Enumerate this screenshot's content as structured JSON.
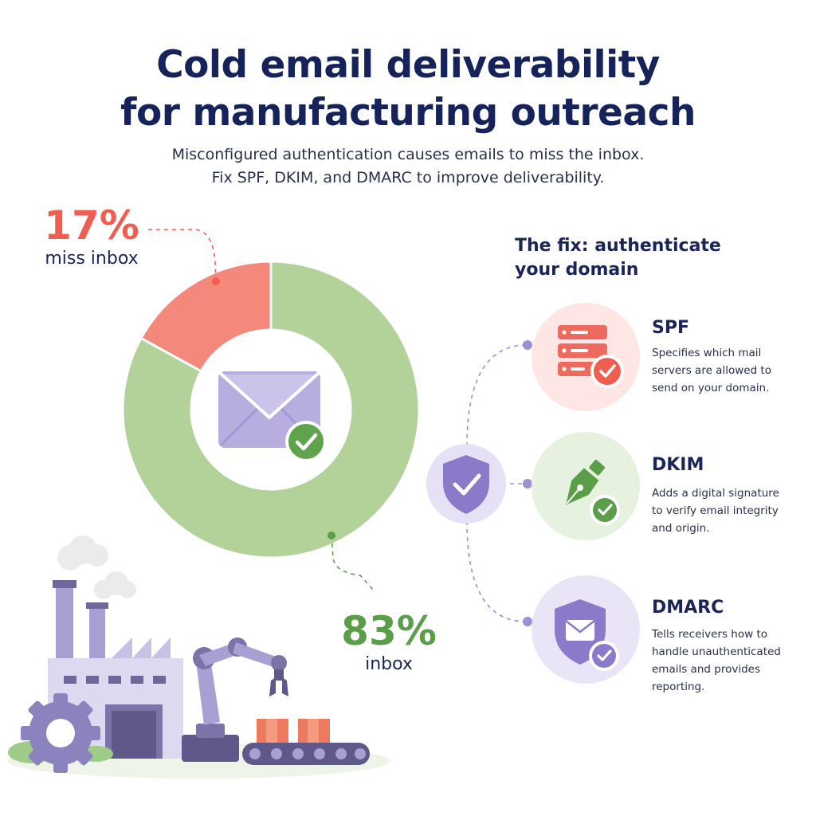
{
  "title_line1": "Cold email deliverability",
  "title_line2": "for manufacturing outreach",
  "subtitle_line1": "Misconfigured authentication causes emails to miss the inbox.",
  "subtitle_line2": "Fix SPF, DKIM, and DMARC to improve deliverability.",
  "chart_data": {
    "type": "pie",
    "labels": [
      "miss inbox",
      "inbox"
    ],
    "values": [
      17,
      83
    ],
    "value_labels": [
      "17%",
      "83%"
    ],
    "colors": [
      "#f4897b",
      "#b3d29a"
    ]
  },
  "fix": {
    "heading_line1": "The fix: authenticate",
    "heading_line2": "your domain",
    "items": [
      {
        "title": "SPF",
        "desc_lines": [
          "Specifies which mail",
          "servers are allowed to",
          "send on your domain."
        ],
        "icon": "server-check-icon",
        "color": "#ee5f52"
      },
      {
        "title": "DKIM",
        "desc_lines": [
          "Adds a digital signature",
          "to verify email integrity",
          "and origin."
        ],
        "icon": "pen-nib-check-icon",
        "color": "#5a9e4a"
      },
      {
        "title": "DMARC",
        "desc_lines": [
          "Tells receivers how to",
          "handle unauthenticated",
          "emails and provides",
          "reporting."
        ],
        "icon": "shield-envelope-check-icon",
        "color": "#8b79c9"
      }
    ]
  },
  "colors": {
    "navy": "#16225a",
    "red": "#ee5f52",
    "green": "#5a9e4a",
    "purple": "#8b79c9",
    "lavender": "#e6e1f4"
  }
}
